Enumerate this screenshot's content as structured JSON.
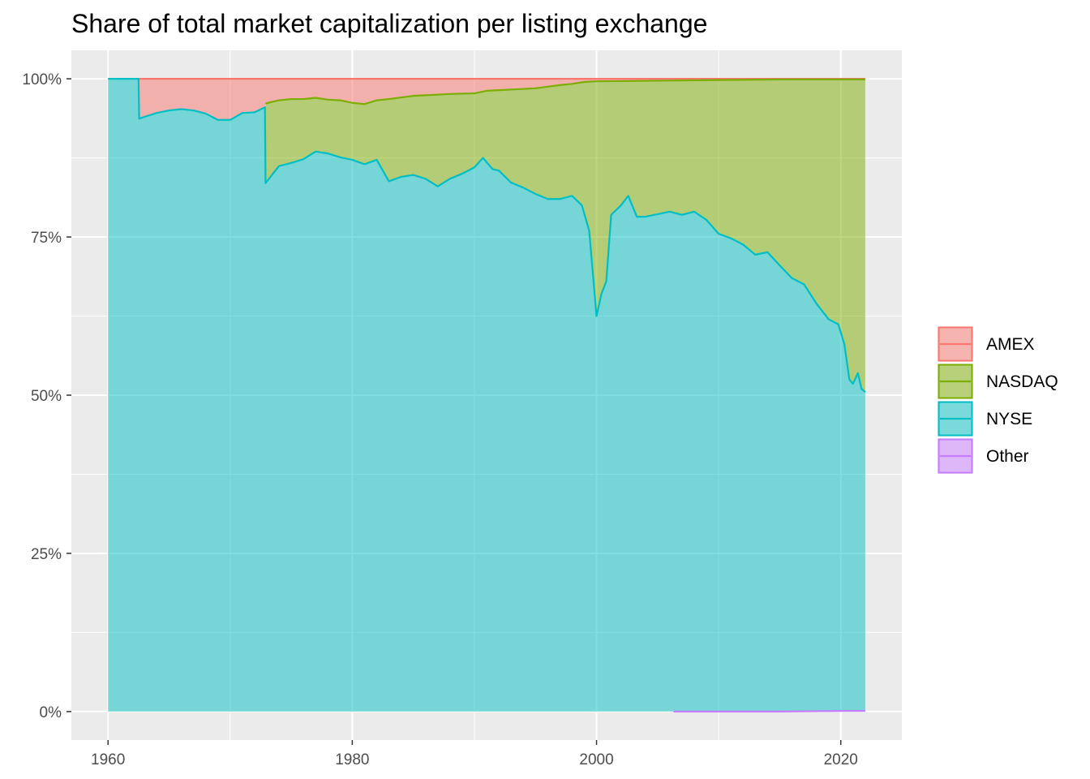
{
  "chart_data": {
    "type": "area",
    "stacked": true,
    "stack_order_bottom_to_top": [
      "Other",
      "NYSE",
      "NASDAQ",
      "AMEX"
    ],
    "title": "Share of total market capitalization per listing exchange",
    "xlabel": "",
    "ylabel": "",
    "x_ticks": [
      1960,
      1980,
      2000,
      2020
    ],
    "y_ticks": [
      0,
      0.25,
      0.5,
      0.75,
      1.0
    ],
    "y_tick_labels": [
      "0%",
      "25%",
      "50%",
      "75%",
      "100%"
    ],
    "xlim": [
      1957.0,
      2025.0
    ],
    "ylim": [
      -0.045,
      1.045
    ],
    "grid": true,
    "legend_position": "right",
    "series": [
      {
        "name": "AMEX",
        "color": "#F8766D",
        "values": [
          [
            1962.5,
            1.0
          ],
          [
            2022.0,
            1.0
          ]
        ]
      },
      {
        "name": "NASDAQ",
        "color": "#7CAE00",
        "values": [
          [
            1972.9,
            0.961
          ],
          [
            1974,
            0.966
          ],
          [
            1975,
            0.968
          ],
          [
            1976,
            0.968
          ],
          [
            1977,
            0.97
          ],
          [
            1978,
            0.967
          ],
          [
            1979,
            0.966
          ],
          [
            1980,
            0.962
          ],
          [
            1981,
            0.96
          ],
          [
            1982,
            0.966
          ],
          [
            1983,
            0.968
          ],
          [
            1985,
            0.973
          ],
          [
            1987,
            0.975
          ],
          [
            1988,
            0.976
          ],
          [
            1990,
            0.977
          ],
          [
            1991,
            0.981
          ],
          [
            1993,
            0.983
          ],
          [
            1995,
            0.985
          ],
          [
            1997,
            0.99
          ],
          [
            1998,
            0.992
          ],
          [
            1999,
            0.995
          ],
          [
            2000,
            0.996
          ],
          [
            2005,
            0.997
          ],
          [
            2010,
            0.998
          ],
          [
            2015,
            0.999
          ],
          [
            2020,
            0.999
          ],
          [
            2022.0,
            0.999
          ]
        ]
      },
      {
        "name": "NYSE",
        "color": "#00BFC4",
        "values": [
          [
            1960.0,
            1.0
          ],
          [
            1962.5,
            1.0
          ],
          [
            1962.55,
            0.937
          ],
          [
            1963,
            0.94
          ],
          [
            1964,
            0.946
          ],
          [
            1965,
            0.95
          ],
          [
            1966,
            0.952
          ],
          [
            1967,
            0.95
          ],
          [
            1968,
            0.945
          ],
          [
            1969,
            0.935
          ],
          [
            1970,
            0.935
          ],
          [
            1971,
            0.946
          ],
          [
            1972,
            0.947
          ],
          [
            1972.85,
            0.955
          ],
          [
            1972.9,
            0.835
          ],
          [
            1973.5,
            0.85
          ],
          [
            1974,
            0.862
          ],
          [
            1975,
            0.867
          ],
          [
            1976,
            0.873
          ],
          [
            1977,
            0.885
          ],
          [
            1978,
            0.882
          ],
          [
            1979,
            0.876
          ],
          [
            1980,
            0.872
          ],
          [
            1981,
            0.865
          ],
          [
            1982,
            0.872
          ],
          [
            1983,
            0.838
          ],
          [
            1984,
            0.845
          ],
          [
            1985,
            0.848
          ],
          [
            1986,
            0.842
          ],
          [
            1987,
            0.83
          ],
          [
            1988,
            0.842
          ],
          [
            1989,
            0.85
          ],
          [
            1990,
            0.86
          ],
          [
            1990.7,
            0.875
          ],
          [
            1991.5,
            0.857
          ],
          [
            1992,
            0.855
          ],
          [
            1993,
            0.836
          ],
          [
            1994,
            0.828
          ],
          [
            1995,
            0.818
          ],
          [
            1996,
            0.81
          ],
          [
            1997,
            0.81
          ],
          [
            1998,
            0.815
          ],
          [
            1998.8,
            0.8
          ],
          [
            1999.4,
            0.76
          ],
          [
            2000.0,
            0.625
          ],
          [
            2000.4,
            0.66
          ],
          [
            2000.8,
            0.68
          ],
          [
            2001.2,
            0.785
          ],
          [
            2002,
            0.8
          ],
          [
            2002.6,
            0.815
          ],
          [
            2003.3,
            0.782
          ],
          [
            2004,
            0.782
          ],
          [
            2005,
            0.786
          ],
          [
            2006,
            0.79
          ],
          [
            2007,
            0.785
          ],
          [
            2008,
            0.79
          ],
          [
            2009,
            0.777
          ],
          [
            2010,
            0.755
          ],
          [
            2011,
            0.748
          ],
          [
            2012,
            0.738
          ],
          [
            2013,
            0.722
          ],
          [
            2014,
            0.726
          ],
          [
            2015,
            0.705
          ],
          [
            2016,
            0.685
          ],
          [
            2017,
            0.675
          ],
          [
            2018,
            0.645
          ],
          [
            2019,
            0.62
          ],
          [
            2019.8,
            0.612
          ],
          [
            2020.3,
            0.58
          ],
          [
            2020.7,
            0.525
          ],
          [
            2021,
            0.518
          ],
          [
            2021.4,
            0.535
          ],
          [
            2021.7,
            0.51
          ],
          [
            2022.0,
            0.505
          ]
        ]
      },
      {
        "name": "Other",
        "color": "#C77CFF",
        "values": [
          [
            2006.3,
            0.0
          ],
          [
            2010,
            0.0
          ],
          [
            2015,
            0.0
          ],
          [
            2020,
            0.001
          ],
          [
            2022.0,
            0.001
          ]
        ]
      }
    ]
  }
}
